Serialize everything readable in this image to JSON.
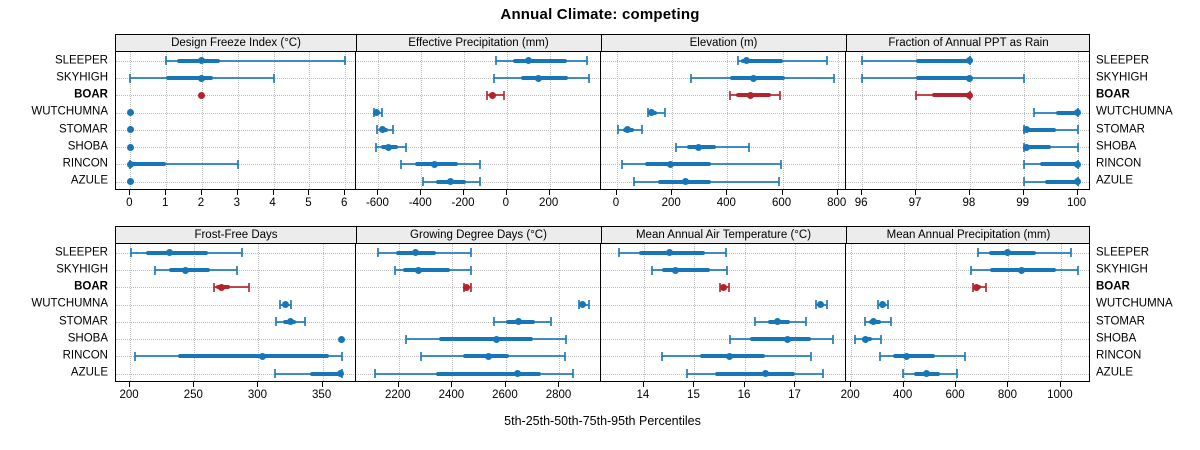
{
  "colors": {
    "series": "#1776b8",
    "highlight": "#b2232d",
    "strip_bg": "#ececec",
    "grid": "#bdbdbd",
    "border": "#000000"
  },
  "chart_data": {
    "type": "scatter",
    "variant": "trellis percentile dot plot (whisker = 5th-95th, thick bar = 25th-75th, dot = 50th)",
    "title": "Annual Climate: competing",
    "xlabel": "5th-25th-50th-75th-95th Percentiles",
    "grid": true,
    "legend_position": "none",
    "highlight_site": "BOAR",
    "sites": [
      "SLEEPER",
      "SKYHIGH",
      "BOAR",
      "WUTCHUMNA",
      "STOMAR",
      "SHOBA",
      "RINCON",
      "AZULE"
    ],
    "panels": [
      {
        "title": "Design Freeze Index (°C)",
        "xlim": [
          -0.4,
          6.3
        ],
        "ticks": [
          0,
          1,
          2,
          3,
          4,
          5,
          6
        ],
        "tick_labels": [
          "0",
          "1",
          "2",
          "3",
          "4",
          "5",
          "6"
        ],
        "percentiles_by_site": {
          "SLEEPER": [
            1,
            1.3,
            2,
            2.5,
            6
          ],
          "SKYHIGH": [
            0,
            1,
            2,
            2.3,
            4
          ],
          "BOAR": [
            2,
            2,
            2,
            2,
            2
          ],
          "WUTCHUMNA": [
            0,
            0,
            0,
            0,
            0
          ],
          "STOMAR": [
            0,
            0,
            0,
            0,
            0
          ],
          "SHOBA": [
            0,
            0,
            0,
            0,
            0
          ],
          "RINCON": [
            0,
            0,
            0,
            1,
            3
          ],
          "AZULE": [
            0,
            0,
            0,
            0,
            0
          ]
        }
      },
      {
        "title": "Effective Precipitation (mm)",
        "xlim": [
          -705,
          440
        ],
        "ticks": [
          -600,
          -400,
          -200,
          0,
          200
        ],
        "tick_labels": [
          "-600",
          "-400",
          "-200",
          "0",
          "200"
        ],
        "percentiles_by_site": {
          "SLEEPER": [
            -52,
            27,
            102,
            281,
            375
          ],
          "SKYHIGH": [
            -61,
            66,
            150,
            284,
            385
          ],
          "BOAR": [
            -95,
            -85,
            -68,
            -50,
            -15
          ],
          "WUTCHUMNA": [
            -621,
            -615,
            -609,
            -600,
            -585
          ],
          "STOMAR": [
            -608,
            -592,
            -579,
            -556,
            -530
          ],
          "SHOBA": [
            -613,
            -590,
            -551,
            -510,
            -472
          ],
          "RINCON": [
            -496,
            -430,
            -337,
            -230,
            -126
          ],
          "AZULE": [
            -394,
            -330,
            -262,
            -190,
            -126
          ]
        }
      },
      {
        "title": "Elevation (m)",
        "xlim": [
          -58,
          830
        ],
        "ticks": [
          0,
          200,
          400,
          600,
          800
        ],
        "tick_labels": [
          "0",
          "200",
          "400",
          "600",
          "800"
        ],
        "percentiles_by_site": {
          "SLEEPER": [
            437,
            450,
            471,
            600,
            761
          ],
          "SKYHIGH": [
            268,
            410,
            495,
            610,
            785
          ],
          "BOAR": [
            410,
            430,
            483,
            560,
            592
          ],
          "WUTCHUMNA": [
            111,
            120,
            126,
            145,
            174
          ],
          "STOMAR": [
            2,
            20,
            39,
            62,
            89
          ],
          "SHOBA": [
            215,
            255,
            295,
            360,
            478
          ],
          "RINCON": [
            19,
            100,
            193,
            340,
            594
          ],
          "AZULE": [
            60,
            150,
            250,
            340,
            587
          ]
        }
      },
      {
        "title": "Fraction of Annual PPT as Rain",
        "xlim": [
          95.7,
          100.25
        ],
        "ticks": [
          96,
          97,
          98,
          99,
          100
        ],
        "tick_labels": [
          "96",
          "97",
          "98",
          "99",
          "100"
        ],
        "percentiles_by_site": {
          "SLEEPER": [
            96,
            97,
            98,
            98,
            98
          ],
          "SKYHIGH": [
            96,
            97,
            98,
            98,
            99
          ],
          "BOAR": [
            97,
            97.3,
            98,
            98,
            98
          ],
          "WUTCHUMNA": [
            99.2,
            99.6,
            100,
            100,
            100
          ],
          "STOMAR": [
            99,
            99,
            99.05,
            99.6,
            100
          ],
          "SHOBA": [
            99,
            99,
            99.05,
            99.5,
            100
          ],
          "RINCON": [
            99,
            99.3,
            100,
            100,
            100
          ],
          "AZULE": [
            99,
            99.4,
            100,
            100,
            100
          ]
        }
      },
      {
        "title": "Frost-Free Days",
        "xlim": [
          189,
          376
        ],
        "ticks": [
          200,
          250,
          300,
          350
        ],
        "tick_labels": [
          "200",
          "250",
          "300",
          "350"
        ],
        "percentiles_by_site": {
          "SLEEPER": [
            201,
            212,
            231,
            261,
            287
          ],
          "SKYHIGH": [
            219,
            230,
            243,
            262,
            283
          ],
          "BOAR": [
            265,
            267,
            271,
            278,
            293
          ],
          "WUTCHUMNA": [
            317,
            319,
            321,
            323,
            325
          ],
          "STOMAR": [
            314,
            319,
            325,
            329,
            336
          ],
          "SHOBA": [
            365,
            365,
            365,
            365,
            365
          ],
          "RINCON": [
            204,
            237,
            303,
            355,
            365
          ],
          "AZULE": [
            313,
            340,
            364,
            365,
            365
          ]
        }
      },
      {
        "title": "Growing Degree Days (°C)",
        "xlim": [
          2040,
          2955
        ],
        "ticks": [
          2200,
          2400,
          2600,
          2800
        ],
        "tick_labels": [
          "2200",
          "2400",
          "2600",
          "2800"
        ],
        "percentiles_by_site": {
          "SLEEPER": [
            2124,
            2190,
            2261,
            2340,
            2470
          ],
          "SKYHIGH": [
            2186,
            2215,
            2273,
            2390,
            2468
          ],
          "BOAR": [
            2443,
            2446,
            2451,
            2461,
            2470
          ],
          "WUTCHUMNA": [
            2872,
            2880,
            2887,
            2896,
            2912
          ],
          "STOMAR": [
            2557,
            2600,
            2648,
            2710,
            2769
          ],
          "SHOBA": [
            2227,
            2350,
            2564,
            2700,
            2825
          ],
          "RINCON": [
            2284,
            2440,
            2534,
            2610,
            2821
          ],
          "AZULE": [
            2112,
            2340,
            2644,
            2730,
            2850
          ]
        }
      },
      {
        "title": "Mean Annual Air Temperature (°C)",
        "xlim": [
          13.15,
          18.0
        ],
        "ticks": [
          14,
          15,
          16,
          17
        ],
        "tick_labels": [
          "14",
          "15",
          "16",
          "17"
        ],
        "percentiles_by_site": {
          "SLEEPER": [
            13.5,
            13.9,
            14.5,
            15.2,
            15.63
          ],
          "SKYHIGH": [
            14.15,
            14.35,
            14.62,
            15.3,
            15.65
          ],
          "BOAR": [
            15.5,
            15.53,
            15.57,
            15.62,
            15.68
          ],
          "WUTCHUMNA": [
            17.4,
            17.45,
            17.5,
            17.56,
            17.63
          ],
          "STOMAR": [
            16.2,
            16.45,
            16.65,
            16.9,
            17.2
          ],
          "SHOBA": [
            15.7,
            16.1,
            16.85,
            17.3,
            17.75
          ],
          "RINCON": [
            14.35,
            15.1,
            15.7,
            16.4,
            17.3
          ],
          "AZULE": [
            14.85,
            15.4,
            16.4,
            17.0,
            17.55
          ]
        }
      },
      {
        "title": "Mean Annual Precipitation (mm)",
        "xlim": [
          180,
          1115
        ],
        "ticks": [
          200,
          400,
          600,
          800,
          1000
        ],
        "tick_labels": [
          "200",
          "400",
          "600",
          "800",
          "1000"
        ],
        "percentiles_by_site": {
          "SLEEPER": [
            683,
            726,
            797,
            905,
            1038
          ],
          "SKYHIGH": [
            657,
            730,
            850,
            980,
            1066
          ],
          "BOAR": [
            664,
            668,
            678,
            695,
            715
          ],
          "WUTCHUMNA": [
            302,
            310,
            321,
            332,
            342
          ],
          "STOMAR": [
            251,
            268,
            286,
            315,
            352
          ],
          "SHOBA": [
            213,
            240,
            253,
            280,
            314
          ],
          "RINCON": [
            308,
            360,
            410,
            520,
            636
          ],
          "AZULE": [
            399,
            440,
            486,
            540,
            604
          ]
        }
      }
    ]
  }
}
